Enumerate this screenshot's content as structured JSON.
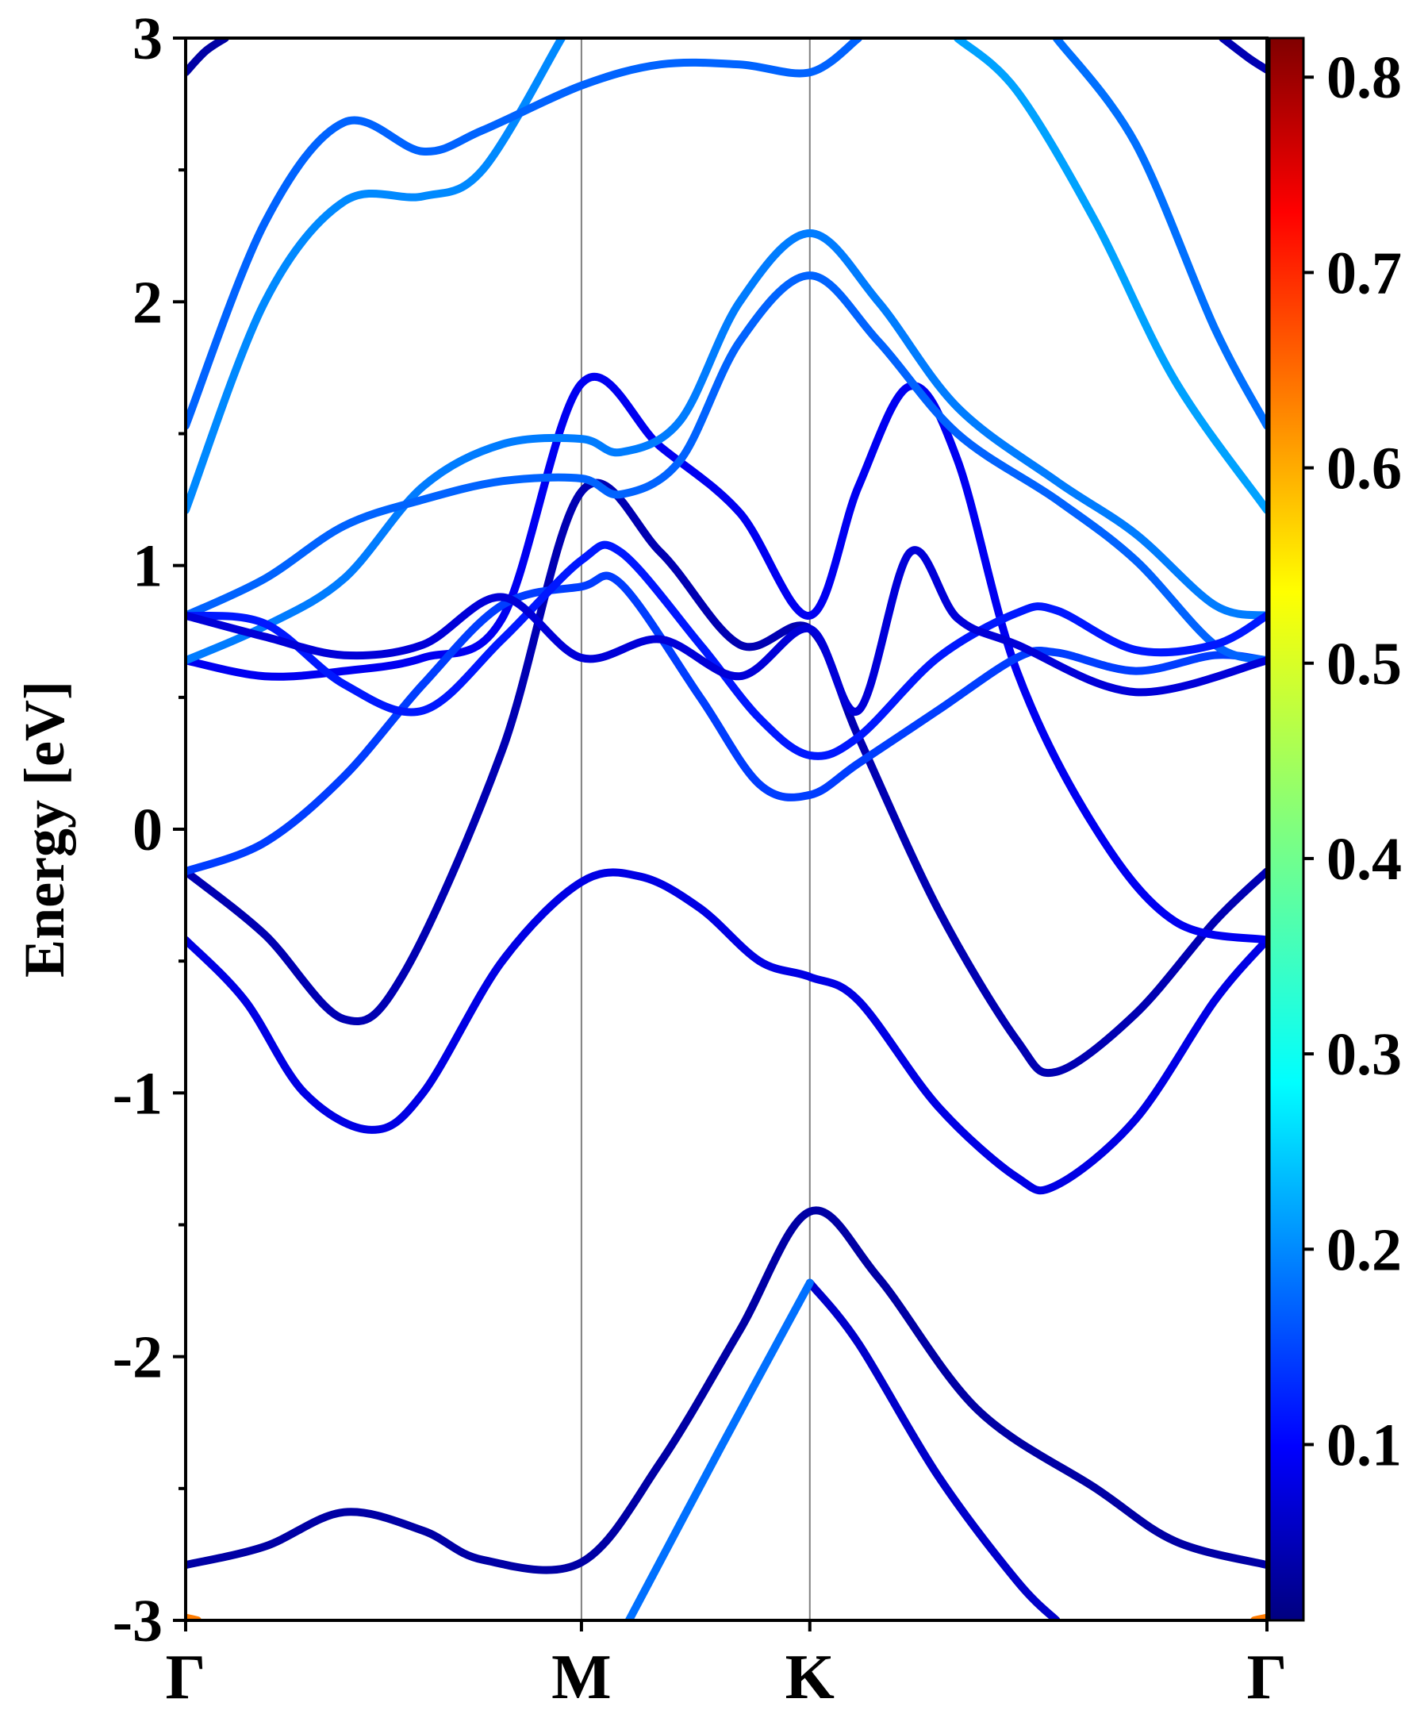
{
  "chart_data": {
    "type": "line",
    "title": "",
    "xlabel": "",
    "ylabel": "Energy [eV]",
    "ylim": [
      -3,
      3
    ],
    "yticks": [
      -3,
      -2,
      -1,
      0,
      1,
      2,
      3
    ],
    "ytick_labels": [
      "-3",
      "-2",
      "-1",
      "0",
      "1",
      "2",
      "3"
    ],
    "x_units": "k-path (high-symmetry points)",
    "kpoints": [
      {
        "label": "Γ",
        "x": 0
      },
      {
        "label": "M",
        "x": 1
      },
      {
        "label": "K",
        "x": 1.577
      },
      {
        "label": "Γ",
        "x": 2.732
      }
    ],
    "grid": "vertical lines at M and K",
    "colorbar": {
      "colormap": "jet",
      "range": [
        0.01,
        0.82
      ],
      "ticks": [
        0.1,
        0.2,
        0.3,
        0.4,
        0.5,
        0.6,
        0.7,
        0.8
      ],
      "tick_labels": [
        "0.1",
        "0.2",
        "0.3",
        "0.4",
        "0.5",
        "0.6",
        "0.7",
        "0.8"
      ]
    },
    "series": [
      {
        "c": 0.04,
        "points": [
          [
            0,
            -2.79
          ],
          [
            0.2,
            -2.72
          ],
          [
            0.4,
            -2.59
          ],
          [
            0.6,
            -2.66
          ],
          [
            0.75,
            -2.77
          ],
          [
            1,
            -2.78
          ],
          [
            1.2,
            -2.4
          ],
          [
            1.4,
            -1.9
          ],
          [
            1.577,
            -1.45
          ],
          [
            1.75,
            -1.7
          ],
          [
            2.0,
            -2.2
          ],
          [
            2.3,
            -2.5
          ],
          [
            2.5,
            -2.7
          ],
          [
            2.732,
            -2.79
          ]
        ]
      },
      {
        "c": 0.07,
        "points": [
          [
            1.577,
            -1.72
          ],
          [
            1.7,
            -1.95
          ],
          [
            1.9,
            -2.45
          ],
          [
            2.1,
            -2.85
          ],
          [
            2.2,
            -3.0
          ]
        ]
      },
      {
        "c": 0.2,
        "points": [
          [
            1.12,
            -3.0
          ],
          [
            1.35,
            -2.35
          ],
          [
            1.577,
            -1.72
          ]
        ]
      },
      {
        "c": 0.05,
        "points": [
          [
            0,
            -0.16
          ],
          [
            0.2,
            -0.4
          ],
          [
            0.4,
            -0.72
          ],
          [
            0.55,
            -0.55
          ],
          [
            0.8,
            0.3
          ],
          [
            1.0,
            1.28
          ],
          [
            1.2,
            1.05
          ],
          [
            1.4,
            0.7
          ],
          [
            1.577,
            0.76
          ],
          [
            1.7,
            0.35
          ],
          [
            1.9,
            -0.3
          ],
          [
            2.1,
            -0.8
          ],
          [
            2.2,
            -0.92
          ],
          [
            2.4,
            -0.7
          ],
          [
            2.6,
            -0.35
          ],
          [
            2.732,
            -0.16
          ]
        ]
      },
      {
        "c": 0.09,
        "points": [
          [
            0,
            -0.42
          ],
          [
            0.15,
            -0.65
          ],
          [
            0.3,
            -1.0
          ],
          [
            0.47,
            -1.14
          ],
          [
            0.6,
            -1.0
          ],
          [
            0.8,
            -0.5
          ],
          [
            1.0,
            -0.2
          ],
          [
            1.15,
            -0.18
          ],
          [
            1.3,
            -0.3
          ],
          [
            1.45,
            -0.5
          ],
          [
            1.577,
            -0.56
          ],
          [
            1.7,
            -0.65
          ],
          [
            1.9,
            -1.05
          ],
          [
            2.1,
            -1.32
          ],
          [
            2.2,
            -1.35
          ],
          [
            2.4,
            -1.1
          ],
          [
            2.6,
            -0.65
          ],
          [
            2.732,
            -0.42
          ]
        ]
      },
      {
        "c": 0.1,
        "points": [
          [
            0,
            0.64
          ],
          [
            0.2,
            0.58
          ],
          [
            0.4,
            0.6
          ],
          [
            0.6,
            0.65
          ],
          [
            0.8,
            0.8
          ],
          [
            1.0,
            1.69
          ],
          [
            1.2,
            1.45
          ],
          [
            1.4,
            1.2
          ],
          [
            1.577,
            0.81
          ],
          [
            1.7,
            1.3
          ],
          [
            1.83,
            1.68
          ],
          [
            1.95,
            1.4
          ],
          [
            2.1,
            0.6
          ],
          [
            2.3,
            0.0
          ],
          [
            2.5,
            -0.35
          ],
          [
            2.732,
            -0.42
          ]
        ]
      },
      {
        "c": 0.16,
        "points": [
          [
            0,
            -0.16
          ],
          [
            0.2,
            -0.05
          ],
          [
            0.4,
            0.2
          ],
          [
            0.6,
            0.55
          ],
          [
            0.8,
            0.85
          ],
          [
            1.0,
            0.92
          ],
          [
            1.1,
            0.93
          ],
          [
            1.3,
            0.5
          ],
          [
            1.45,
            0.17
          ],
          [
            1.577,
            0.13
          ],
          [
            1.7,
            0.25
          ],
          [
            1.9,
            0.45
          ],
          [
            2.1,
            0.65
          ],
          [
            2.2,
            0.67
          ],
          [
            2.4,
            0.6
          ],
          [
            2.6,
            0.66
          ],
          [
            2.732,
            0.64
          ]
        ]
      },
      {
        "c": 0.21,
        "points": [
          [
            0,
            0.64
          ],
          [
            0.2,
            0.77
          ],
          [
            0.4,
            0.95
          ],
          [
            0.6,
            1.3
          ],
          [
            0.8,
            1.46
          ],
          [
            1.0,
            1.48
          ],
          [
            1.1,
            1.43
          ],
          [
            1.25,
            1.55
          ],
          [
            1.4,
            2.0
          ],
          [
            1.577,
            2.26
          ],
          [
            1.75,
            2.0
          ],
          [
            1.95,
            1.6
          ],
          [
            2.2,
            1.32
          ],
          [
            2.4,
            1.12
          ],
          [
            2.6,
            0.85
          ],
          [
            2.732,
            0.81
          ]
        ]
      },
      {
        "c": 0.19,
        "points": [
          [
            0,
            0.81
          ],
          [
            0.2,
            0.95
          ],
          [
            0.4,
            1.15
          ],
          [
            0.6,
            1.25
          ],
          [
            0.8,
            1.32
          ],
          [
            1.0,
            1.33
          ],
          [
            1.1,
            1.27
          ],
          [
            1.25,
            1.4
          ],
          [
            1.4,
            1.85
          ],
          [
            1.577,
            2.1
          ],
          [
            1.75,
            1.85
          ],
          [
            1.95,
            1.5
          ],
          [
            2.2,
            1.25
          ],
          [
            2.4,
            1.02
          ],
          [
            2.6,
            0.7
          ],
          [
            2.732,
            0.64
          ]
        ]
      },
      {
        "c": 0.13,
        "points": [
          [
            0,
            0.81
          ],
          [
            0.2,
            0.78
          ],
          [
            0.4,
            0.55
          ],
          [
            0.6,
            0.45
          ],
          [
            0.8,
            0.72
          ],
          [
            1.0,
            1.02
          ],
          [
            1.1,
            1.05
          ],
          [
            1.3,
            0.7
          ],
          [
            1.45,
            0.42
          ],
          [
            1.577,
            0.28
          ],
          [
            1.7,
            0.35
          ],
          [
            1.9,
            0.65
          ],
          [
            2.1,
            0.82
          ],
          [
            2.2,
            0.83
          ],
          [
            2.4,
            0.68
          ],
          [
            2.6,
            0.7
          ],
          [
            2.732,
            0.81
          ]
        ]
      },
      {
        "c": 0.08,
        "points": [
          [
            0,
            0.81
          ],
          [
            0.2,
            0.73
          ],
          [
            0.4,
            0.66
          ],
          [
            0.6,
            0.7
          ],
          [
            0.8,
            0.88
          ],
          [
            1.0,
            0.65
          ],
          [
            1.2,
            0.72
          ],
          [
            1.4,
            0.58
          ],
          [
            1.577,
            0.76
          ],
          [
            1.7,
            0.45
          ],
          [
            1.83,
            1.05
          ],
          [
            1.95,
            0.8
          ],
          [
            2.1,
            0.7
          ],
          [
            2.4,
            0.52
          ],
          [
            2.732,
            0.64
          ]
        ]
      },
      {
        "c": 0.22,
        "points": [
          [
            0,
            1.21
          ],
          [
            0.2,
            2.0
          ],
          [
            0.4,
            2.38
          ],
          [
            0.6,
            2.4
          ],
          [
            0.75,
            2.5
          ],
          [
            0.95,
            3.0
          ]
        ]
      },
      {
        "c": 0.19,
        "points": [
          [
            0,
            1.53
          ],
          [
            0.2,
            2.3
          ],
          [
            0.4,
            2.68
          ],
          [
            0.6,
            2.57
          ],
          [
            0.75,
            2.65
          ],
          [
            1.0,
            2.82
          ],
          [
            1.2,
            2.9
          ],
          [
            1.4,
            2.9
          ],
          [
            1.577,
            2.87
          ],
          [
            1.7,
            3.0
          ]
        ]
      },
      {
        "c": 0.24,
        "points": [
          [
            1.95,
            3.0
          ],
          [
            2.1,
            2.8
          ],
          [
            2.3,
            2.3
          ],
          [
            2.5,
            1.7
          ],
          [
            2.732,
            1.21
          ]
        ]
      },
      {
        "c": 0.2,
        "points": [
          [
            2.2,
            3.0
          ],
          [
            2.4,
            2.6
          ],
          [
            2.6,
            1.9
          ],
          [
            2.732,
            1.53
          ]
        ]
      },
      {
        "c": 0.04,
        "points": [
          [
            0,
            2.87
          ],
          [
            0.05,
            2.95
          ],
          [
            0.1,
            3.0
          ]
        ]
      },
      {
        "c": 0.05,
        "points": [
          [
            2.62,
            3.0
          ],
          [
            2.69,
            2.92
          ],
          [
            2.732,
            2.88
          ]
        ]
      },
      {
        "c": 0.62,
        "points": [
          [
            0,
            -2.99
          ],
          [
            0.03,
            -3.0
          ]
        ]
      },
      {
        "c": 0.62,
        "points": [
          [
            2.7,
            -3.0
          ],
          [
            2.732,
            -2.99
          ]
        ]
      }
    ]
  }
}
